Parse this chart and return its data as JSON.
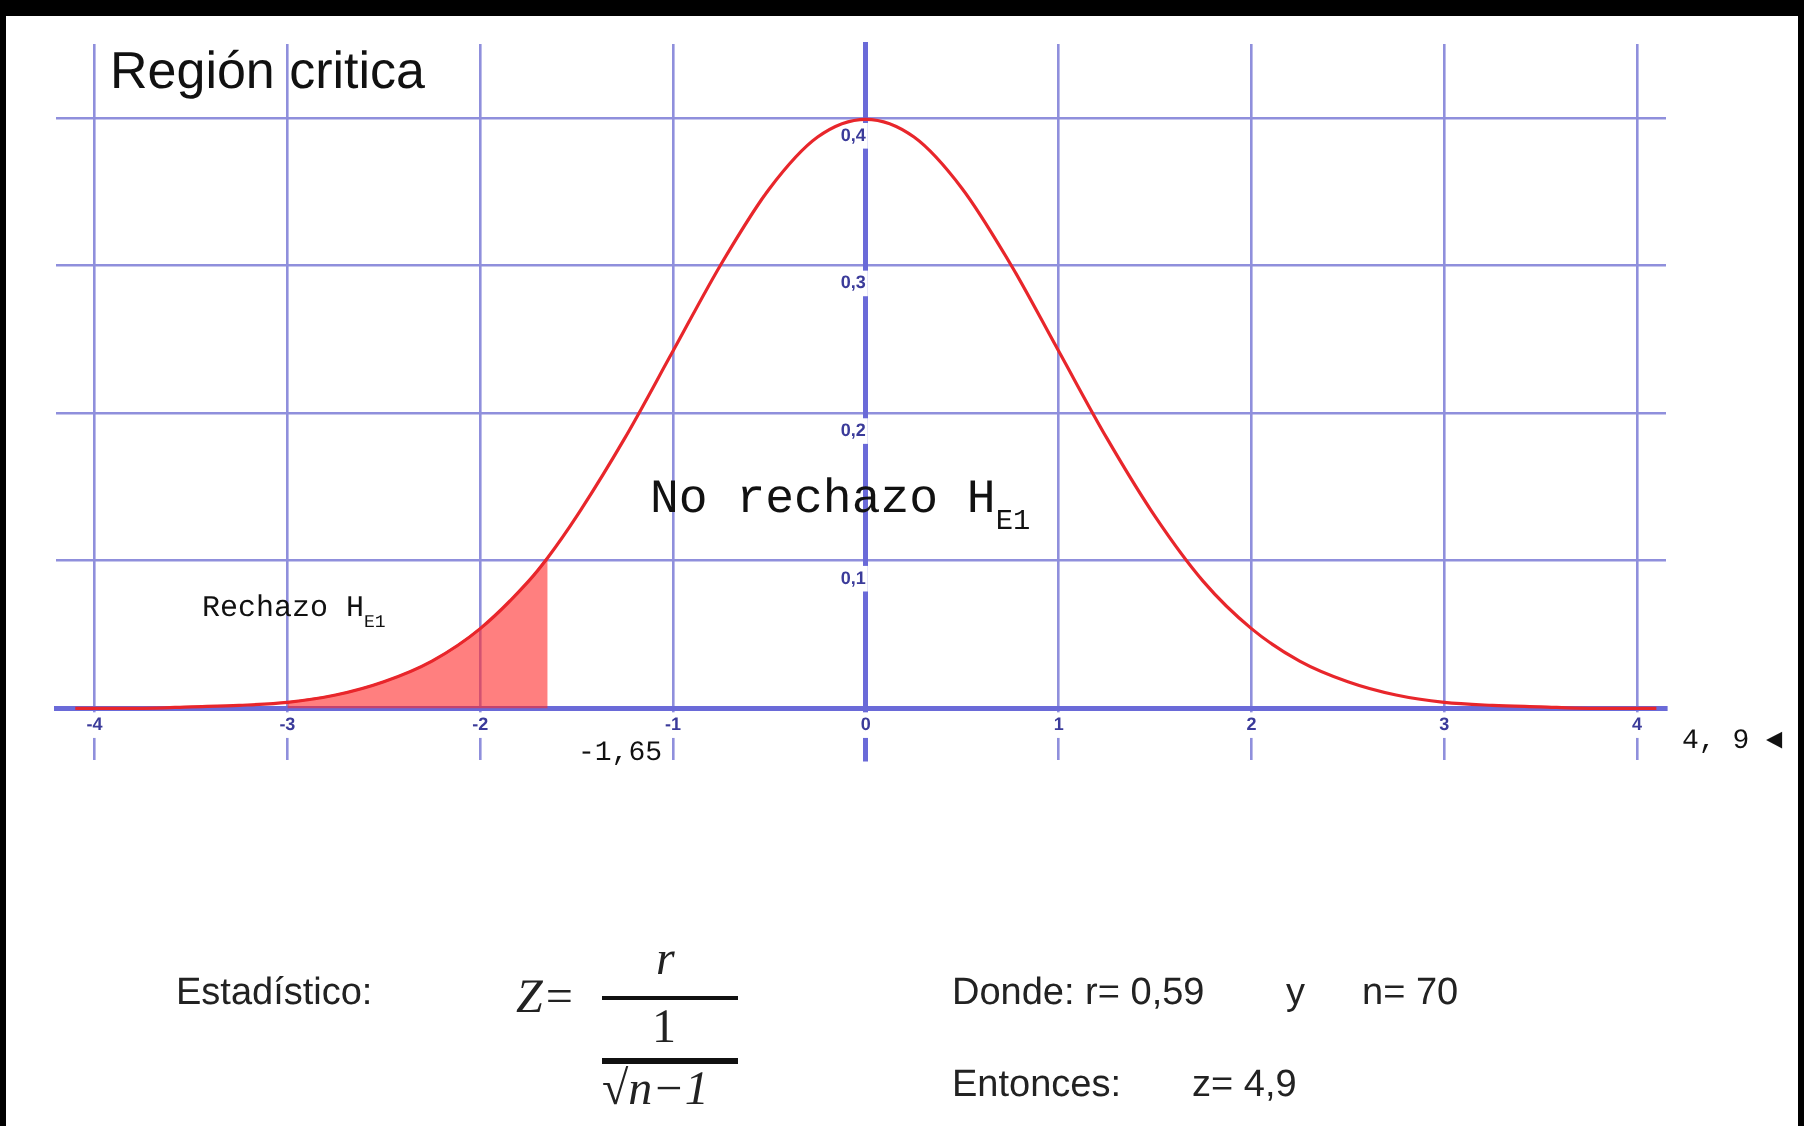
{
  "chart_data": {
    "type": "line",
    "title": "Región critica",
    "x": [
      -4.1,
      -3.75,
      -3.5,
      -3.25,
      -3,
      -2.75,
      -2.5,
      -2.25,
      -2,
      -1.75,
      -1.65,
      -1.5,
      -1.25,
      -1,
      -0.75,
      -0.5,
      -0.25,
      0,
      0.25,
      0.5,
      0.75,
      1,
      1.25,
      1.5,
      1.75,
      2,
      2.25,
      2.5,
      2.75,
      3,
      3.25,
      3.5,
      3.75,
      4.1
    ],
    "series": [
      {
        "color": "#e8262b",
        "values": [
          0.0,
          0.0,
          0.001,
          0.002,
          0.004,
          0.009,
          0.018,
          0.032,
          0.054,
          0.086,
          0.102,
          0.13,
          0.183,
          0.242,
          0.301,
          0.352,
          0.387,
          0.399,
          0.387,
          0.352,
          0.301,
          0.242,
          0.183,
          0.13,
          0.086,
          0.054,
          0.032,
          0.018,
          0.009,
          0.004,
          0.002,
          0.001,
          0.0,
          0.0
        ]
      },
      {
        "type": "area",
        "color": "#ff2a2a",
        "x": [
          -3,
          -2.75,
          -2.5,
          -2.25,
          -2,
          -1.75,
          -1.65
        ],
        "values": [
          0.004,
          0.009,
          0.018,
          0.032,
          0.054,
          0.086,
          0.102
        ]
      }
    ],
    "xlim": [
      -4.2,
      4.15
    ],
    "ylim": [
      -0.035,
      0.45
    ],
    "xticks": [
      -4,
      -3,
      -2,
      -1,
      0,
      1,
      2,
      3,
      4
    ],
    "yticks": [
      {
        "value": 0.1,
        "label": "0,1"
      },
      {
        "value": 0.2,
        "label": "0,2"
      },
      {
        "value": 0.3,
        "label": "0,3"
      },
      {
        "value": 0.4,
        "label": "0,4"
      }
    ],
    "grid": true,
    "legend": false,
    "marker": "none",
    "line_style": "solid",
    "annotations": [
      "No rechazo H$_{E1}$",
      "-1,65",
      "4, 9 ◄",
      "Estadístico:",
      "Z=",
      "r",
      "1",
      "√n−1",
      "Donde: r= 0,59",
      "y",
      "n= 70",
      "Entonces:",
      "z= 4,9",
      "Rechazo H$_{E1}$"
    ]
  }
}
